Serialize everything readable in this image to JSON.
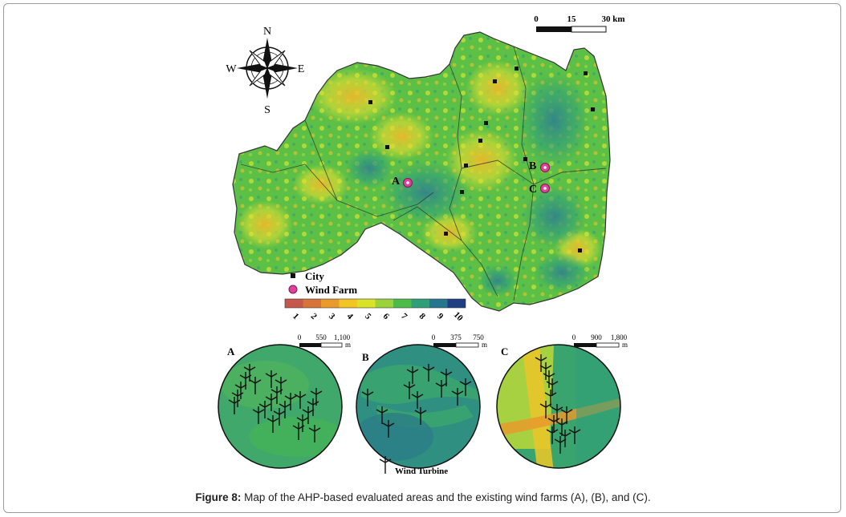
{
  "compass": {
    "n": "N",
    "s": "S",
    "e": "E",
    "w": "W"
  },
  "scale_bar": {
    "labels": [
      "0",
      "15",
      "30 km"
    ]
  },
  "site_labels": {
    "a": "A",
    "b": "B",
    "c": "C"
  },
  "legend": {
    "city_label": "City",
    "wind_farm_label": "Wind Farm",
    "classes": [
      "1",
      "2",
      "3",
      "4",
      "5",
      "6",
      "7",
      "8",
      "9",
      "10"
    ],
    "class_colors": [
      "#c4584a",
      "#d7743c",
      "#e89a2b",
      "#f2c524",
      "#d8e32a",
      "#9ad23a",
      "#4cbb49",
      "#2f9f7a",
      "#27768f",
      "#1f3f82"
    ]
  },
  "insets": {
    "a": {
      "label": "A",
      "scale": [
        "0",
        "550",
        "1,100"
      ],
      "unit": "m"
    },
    "b": {
      "label": "B",
      "scale": [
        "0",
        "375",
        "750"
      ],
      "unit": "m"
    },
    "c": {
      "label": "C",
      "scale": [
        "0",
        "900",
        "1,800"
      ],
      "unit": "m"
    },
    "turbine_label": "Wind Turbine"
  },
  "caption": {
    "prefix": "Figure 8:",
    "text": " Map of the AHP-based evaluated areas and the existing wind farms (A), (B), and (C)."
  }
}
